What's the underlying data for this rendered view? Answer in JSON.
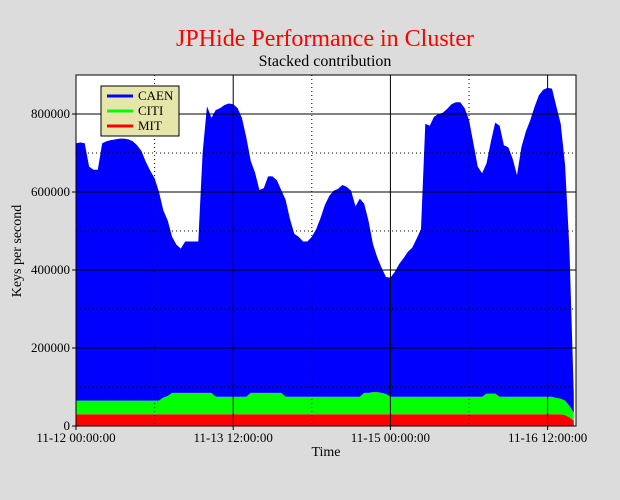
{
  "chart_data": {
    "type": "area",
    "stacked": true,
    "title": "JPHide Performance in Cluster",
    "subtitle": "Stacked contribution",
    "xlabel": "Time",
    "ylabel": "Keys per second",
    "xlim": [
      0,
      114.5
    ],
    "ylim": [
      0,
      900000
    ],
    "grid": true,
    "legend_position": "top-left",
    "x_ticks": [
      {
        "value": 0,
        "label": "11-12 00:00:00"
      },
      {
        "value": 36,
        "label": "11-13 12:00:00"
      },
      {
        "value": 72,
        "label": "11-15 00:00:00"
      },
      {
        "value": 108,
        "label": "11-16 12:00:00"
      }
    ],
    "x_minor_ticks": [
      18,
      54,
      90
    ],
    "y_ticks": [
      0,
      200000,
      400000,
      600000,
      800000
    ],
    "x": [
      0,
      1,
      2,
      3,
      4,
      5,
      6,
      7,
      8,
      9,
      10,
      11,
      12,
      13,
      14,
      15,
      16,
      17,
      18,
      19,
      20,
      21,
      22,
      23,
      24,
      25,
      26,
      27,
      28,
      29,
      30,
      31,
      32,
      33,
      34,
      35,
      36,
      37,
      38,
      39,
      40,
      41,
      42,
      43,
      44,
      45,
      46,
      47,
      48,
      49,
      50,
      51,
      52,
      53,
      54,
      55,
      56,
      57,
      58,
      59,
      60,
      61,
      62,
      63,
      64,
      65,
      66,
      67,
      68,
      69,
      70,
      71,
      72,
      73,
      74,
      75,
      76,
      77,
      78,
      79,
      80,
      81,
      82,
      83,
      84,
      85,
      86,
      87,
      88,
      89,
      90,
      91,
      92,
      93,
      94,
      95,
      96,
      97,
      98,
      99,
      100,
      101,
      102,
      103,
      104,
      105,
      106,
      107,
      108,
      109,
      110,
      111,
      112,
      113,
      114
    ],
    "series": [
      {
        "name": "MIT",
        "color": "#ff0000",
        "values": [
          30000,
          30000,
          30000,
          30000,
          30000,
          30000,
          30000,
          30000,
          30000,
          30000,
          30000,
          30000,
          30000,
          30000,
          30000,
          30000,
          30000,
          30000,
          30000,
          30000,
          30000,
          30000,
          30000,
          30000,
          30000,
          30000,
          30000,
          30000,
          30000,
          30000,
          30000,
          30000,
          30000,
          30000,
          30000,
          30000,
          30000,
          30000,
          30000,
          30000,
          30000,
          30000,
          30000,
          30000,
          30000,
          30000,
          30000,
          30000,
          30000,
          30000,
          30000,
          30000,
          30000,
          30000,
          30000,
          30000,
          30000,
          30000,
          30000,
          30000,
          30000,
          30000,
          30000,
          30000,
          30000,
          30000,
          30000,
          30000,
          30000,
          30000,
          30000,
          30000,
          30000,
          30000,
          30000,
          30000,
          30000,
          30000,
          30000,
          30000,
          30000,
          30000,
          30000,
          30000,
          30000,
          30000,
          30000,
          30000,
          30000,
          30000,
          30000,
          30000,
          30000,
          30000,
          30000,
          30000,
          30000,
          30000,
          30000,
          30000,
          30000,
          30000,
          30000,
          30000,
          30000,
          30000,
          30000,
          30000,
          30000,
          30000,
          30000,
          30000,
          28000,
          22000,
          14000
        ]
      },
      {
        "name": "CITI",
        "color": "#00ff00",
        "values": [
          35000,
          35000,
          35000,
          35000,
          35000,
          35000,
          35000,
          35000,
          35000,
          35000,
          35000,
          35000,
          35000,
          35000,
          35000,
          35000,
          35000,
          35000,
          35000,
          35000,
          43000,
          47000,
          55000,
          55000,
          55000,
          55000,
          55000,
          55000,
          55000,
          55000,
          55000,
          55000,
          45000,
          45000,
          45000,
          45000,
          45000,
          45000,
          45000,
          45000,
          55000,
          55000,
          55000,
          55000,
          55000,
          55000,
          55000,
          55000,
          45000,
          45000,
          45000,
          45000,
          45000,
          45000,
          45000,
          45000,
          45000,
          45000,
          45000,
          45000,
          45000,
          45000,
          45000,
          45000,
          45000,
          45000,
          55000,
          55000,
          57000,
          57000,
          55000,
          52000,
          45000,
          45000,
          45000,
          45000,
          45000,
          45000,
          45000,
          45000,
          45000,
          45000,
          45000,
          45000,
          45000,
          45000,
          45000,
          45000,
          45000,
          45000,
          45000,
          45000,
          45000,
          45000,
          53000,
          53000,
          53000,
          45000,
          45000,
          45000,
          45000,
          45000,
          45000,
          45000,
          45000,
          45000,
          45000,
          45000,
          45000,
          45000,
          42000,
          40000,
          37000,
          30000,
          20000
        ]
      },
      {
        "name": "CAEN",
        "color": "#0000ff",
        "values": [
          660000,
          662000,
          660000,
          600000,
          592000,
          592000,
          660000,
          665000,
          668000,
          670000,
          672000,
          672000,
          670000,
          665000,
          655000,
          640000,
          612000,
          590000,
          570000,
          535000,
          480000,
          450000,
          400000,
          380000,
          370000,
          388000,
          388000,
          388000,
          388000,
          615000,
          735000,
          705000,
          735000,
          740000,
          748000,
          752000,
          750000,
          740000,
          715000,
          665000,
          595000,
          565000,
          520000,
          525000,
          555000,
          555000,
          545000,
          520000,
          505000,
          455000,
          418000,
          410000,
          398000,
          398000,
          410000,
          430000,
          458000,
          492000,
          515000,
          528000,
          533000,
          543000,
          538000,
          528000,
          488000,
          508000,
          485000,
          440000,
          380000,
          345000,
          320000,
          300000,
          305000,
          320000,
          340000,
          355000,
          372000,
          382000,
          405000,
          430000,
          700000,
          695000,
          718000,
          725000,
          728000,
          738000,
          750000,
          755000,
          755000,
          740000,
          710000,
          650000,
          590000,
          573000,
          590000,
          645000,
          695000,
          695000,
          645000,
          640000,
          610000,
          568000,
          640000,
          680000,
          708000,
          743000,
          773000,
          787000,
          792000,
          790000,
          748000,
          705000,
          603000,
          403000,
          46000
        ]
      }
    ]
  }
}
